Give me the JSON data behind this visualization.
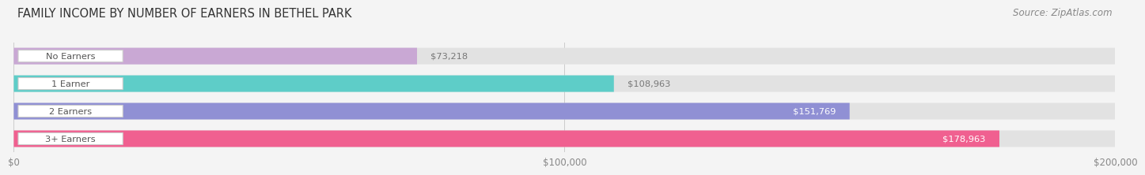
{
  "title": "FAMILY INCOME BY NUMBER OF EARNERS IN BETHEL PARK",
  "source": "Source: ZipAtlas.com",
  "categories": [
    "No Earners",
    "1 Earner",
    "2 Earners",
    "3+ Earners"
  ],
  "values": [
    73218,
    108963,
    151769,
    178963
  ],
  "bar_colors": [
    "#c9a8d4",
    "#5ecdc8",
    "#9090d4",
    "#f06090"
  ],
  "max_value": 200000,
  "tick_values": [
    0,
    100000,
    200000
  ],
  "tick_labels": [
    "$0",
    "$100,000",
    "$200,000"
  ],
  "value_labels": [
    "$73,218",
    "$108,963",
    "$151,769",
    "$178,963"
  ],
  "value_inside": [
    false,
    false,
    true,
    true
  ],
  "bg_color": "#f4f4f4",
  "bar_bg_color": "#e2e2e2",
  "title_fontsize": 10.5,
  "source_fontsize": 8.5,
  "label_text_color": "#555555",
  "value_outside_color": "#777777",
  "value_inside_color": "#ffffff"
}
